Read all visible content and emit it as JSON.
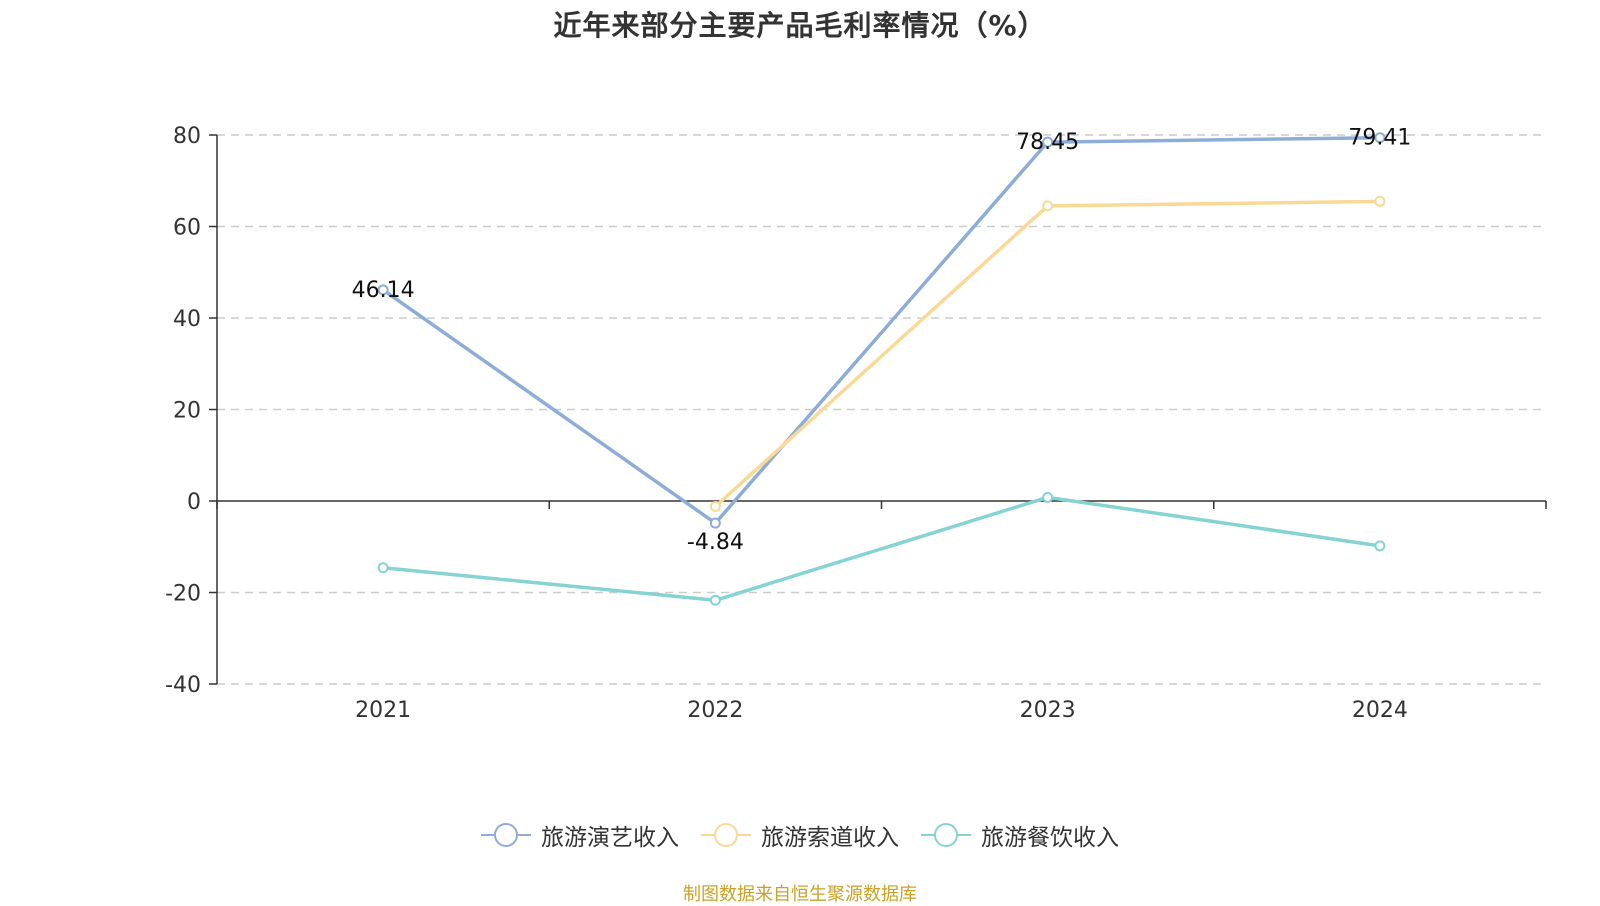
{
  "chart_data": {
    "type": "line",
    "title": "近年来部分主要产品毛利率情况（%）",
    "categories": [
      "2021",
      "2022",
      "2023",
      "2024"
    ],
    "ylim": [
      -40,
      80
    ],
    "yticks": [
      80,
      60,
      40,
      20,
      0,
      -20,
      -40
    ],
    "grid": true,
    "legend_position": "bottom",
    "series": [
      {
        "name": "旅游演艺收入",
        "color": "#8eacd8",
        "values": [
          46.14,
          -4.84,
          78.45,
          79.41
        ],
        "labels": [
          "46.14",
          "-4.84",
          "78.45",
          "79.41"
        ]
      },
      {
        "name": "旅游索道收入",
        "color": "#fad996",
        "values": [
          null,
          -1.2,
          64.5,
          65.5
        ],
        "labels": [
          null,
          null,
          null,
          null
        ]
      },
      {
        "name": "旅游餐饮收入",
        "color": "#85d3d3",
        "values": [
          -14.6,
          -21.7,
          0.8,
          -9.8
        ],
        "labels": [
          null,
          null,
          null,
          null
        ]
      }
    ]
  },
  "source": "制图数据来自恒生聚源数据库"
}
